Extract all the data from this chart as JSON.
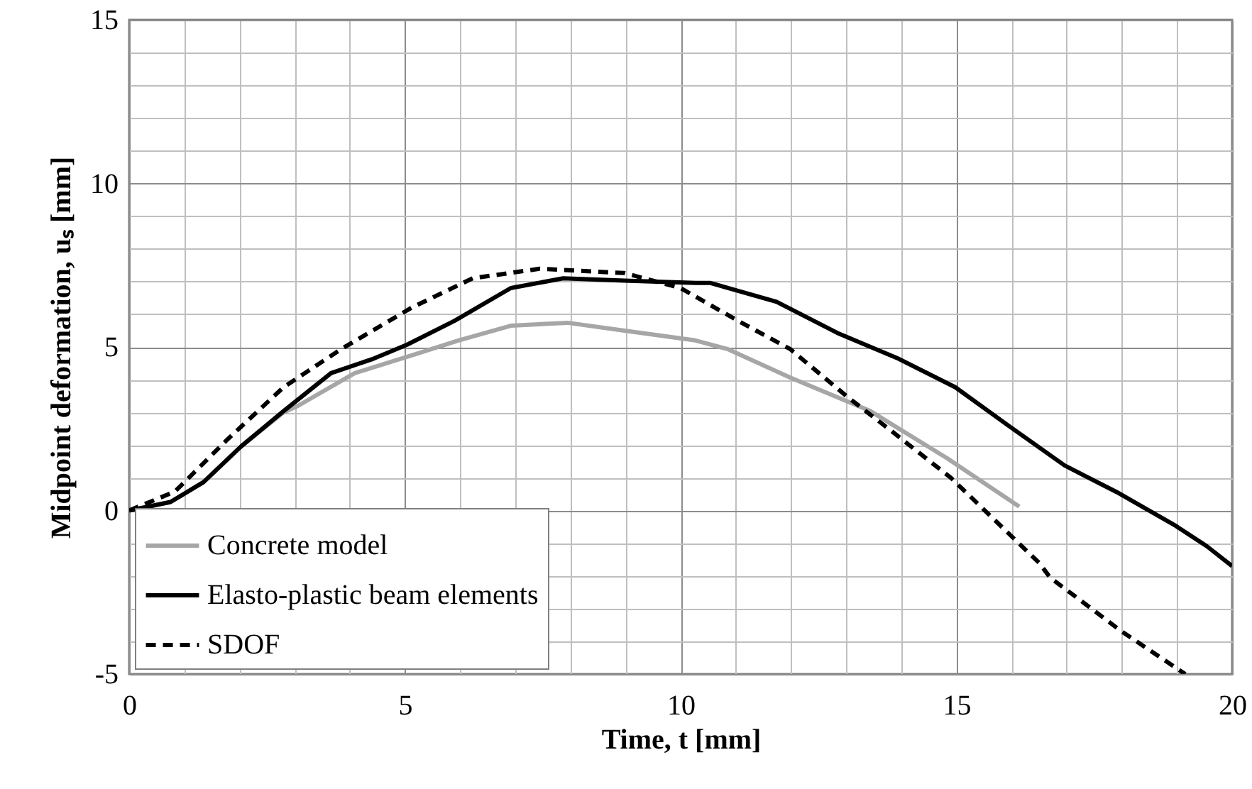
{
  "chart_data": {
    "type": "line",
    "xlabel": "Time, t [mm]",
    "ylabel": "Midpoint deformation, uₛ [mm]",
    "xlim": [
      0,
      20
    ],
    "ylim": [
      -5,
      15
    ],
    "xticks": [
      0,
      {
        "value": 1,
        "label": null
      },
      {
        "value": 2,
        "label": null
      },
      {
        "value": 3,
        "label": null
      },
      {
        "value": 4,
        "label": null
      },
      5,
      {
        "value": 6,
        "label": null
      },
      {
        "value": 7,
        "label": null
      },
      {
        "value": 8,
        "label": null
      },
      {
        "value": 9,
        "label": null
      },
      10,
      {
        "value": 11,
        "label": null
      },
      {
        "value": 12,
        "label": null
      },
      {
        "value": 13,
        "label": null
      },
      {
        "value": 14,
        "label": null
      },
      15,
      {
        "value": 16,
        "label": null
      },
      {
        "value": 17,
        "label": null
      },
      {
        "value": 18,
        "label": null
      },
      {
        "value": 19,
        "label": null
      },
      20
    ],
    "yticks": [
      -5,
      {
        "value": -4,
        "label": null
      },
      {
        "value": -3,
        "label": null
      },
      {
        "value": -2,
        "label": null
      },
      {
        "value": -1,
        "label": null
      },
      0,
      {
        "value": 1,
        "label": null
      },
      {
        "value": 2,
        "label": null
      },
      {
        "value": 3,
        "label": null
      },
      {
        "value": 4,
        "label": null
      },
      5,
      {
        "value": 6,
        "label": null
      },
      {
        "value": 7,
        "label": null
      },
      {
        "value": 8,
        "label": null
      },
      {
        "value": 9,
        "label": null
      },
      10,
      {
        "value": 11,
        "label": null
      },
      {
        "value": 12,
        "label": null
      },
      {
        "value": 13,
        "label": null
      },
      {
        "value": 14,
        "label": null
      },
      15
    ],
    "grid": true,
    "legend": "bottom left",
    "marker": "none",
    "series": [
      {
        "name": "Concrete model",
        "color": "#a6a6a6",
        "line_style": "solid",
        "x": [
          0,
          0.75,
          1.35,
          2.03,
          2.8,
          3.06,
          4.09,
          5.04,
          5.97,
          6.92,
          7.95,
          8.98,
          10.27,
          10.86,
          11.99,
          13.44,
          14.83,
          16.14
        ],
        "values": [
          0,
          0.26,
          0.87,
          1.96,
          3.0,
          3.2,
          4.2,
          4.7,
          5.2,
          5.65,
          5.74,
          5.5,
          5.2,
          4.93,
          4.06,
          3.04,
          1.6,
          0.12
        ]
      },
      {
        "name": "Elasto-plastic beam elements",
        "color": "#000000",
        "line_style": "solid",
        "x": [
          0,
          0.75,
          1.35,
          2.03,
          2.8,
          3.66,
          4.43,
          5.04,
          5.9,
          6.92,
          7.87,
          8.98,
          10.27,
          10.53,
          11.74,
          12.84,
          13.95,
          14.98,
          15.93,
          16.96,
          17.9,
          18.94,
          19.54,
          20
        ],
        "values": [
          0,
          0.26,
          0.87,
          1.96,
          3.04,
          4.2,
          4.64,
          5.07,
          5.8,
          6.8,
          7.1,
          7.03,
          6.96,
          6.96,
          6.38,
          5.43,
          4.64,
          3.77,
          2.61,
          1.38,
          0.57,
          -0.43,
          -1.09,
          -1.7
        ]
      },
      {
        "name": "SDOF",
        "color": "#000000",
        "line_style": "dashed",
        "x": [
          0,
          0.83,
          1.78,
          2.8,
          3.84,
          5.12,
          6.23,
          7.44,
          8.98,
          10.0,
          11.04,
          11.99,
          13.02,
          13.8,
          14.9,
          16.5,
          16.7,
          18.0,
          19.15
        ],
        "values": [
          0,
          0.58,
          2.17,
          3.77,
          4.93,
          6.2,
          7.1,
          7.39,
          7.26,
          6.8,
          5.8,
          4.93,
          3.48,
          2.46,
          1.0,
          -1.6,
          -2.05,
          -3.7,
          -5
        ]
      }
    ]
  }
}
